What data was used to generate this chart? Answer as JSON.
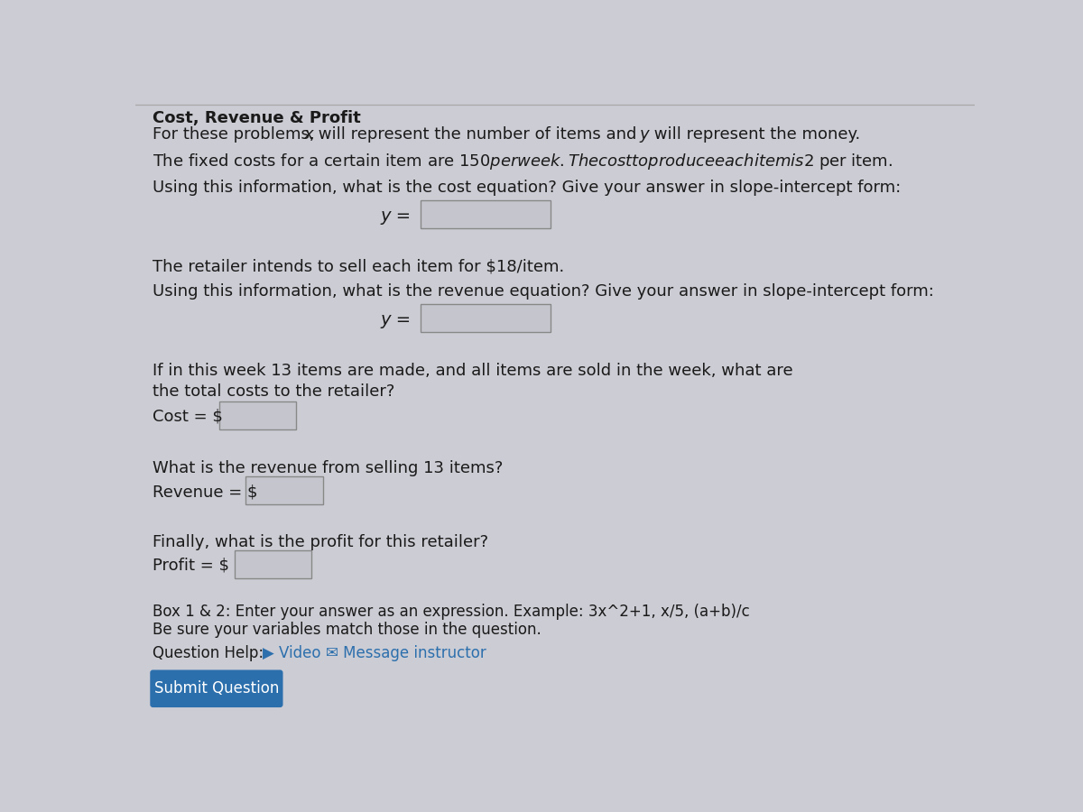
{
  "bg_color": "#ccccd4",
  "title": "Cost, Revenue & Profit",
  "subtitle_plain1": "For these problems, ",
  "subtitle_x": "x",
  "subtitle_plain2": " will represent the number of items and ",
  "subtitle_y": "y",
  "subtitle_plain3": " will represent the money.",
  "line1": "The fixed costs for a certain item are $150 per week. The cost to produce each item is $2 per item.",
  "line2": "Using this information, what is the cost equation? Give your answer in slope-intercept form:",
  "line3": "The retailer intends to sell each item for $18/item.",
  "line4": "Using this information, what is the revenue equation? Give your answer in slope-intercept form:",
  "line5a": "If in this week 13 items are made, and all items are sold in the week, what are",
  "line5b": "the total costs to the retailer?",
  "cost_label": "Cost = $",
  "line6": "What is the revenue from selling 13 items?",
  "revenue_label": "Revenue = $",
  "line7": "Finally, what is the profit for this retailer?",
  "profit_label": "Profit = $",
  "box_note1": "Box 1 & 2: Enter your answer as an expression. Example: 3x^2+1, x/5, (a+b)/c",
  "box_note2": "Be sure your variables match those in the question.",
  "question_help_label": "Question Help:",
  "video_text": "▶ Video",
  "message_text": "✉ Message instructor",
  "submit_text": "Submit Question",
  "submit_bg": "#2c6fad",
  "submit_color": "#ffffff",
  "link_color": "#2c6fad",
  "text_color": "#1a1a1a",
  "box_fill": "#c5c5ce",
  "box_edge": "#888888",
  "title_fontsize": 13,
  "body_fontsize": 13,
  "small_fontsize": 12,
  "top_border_color": "#aaaaaa"
}
